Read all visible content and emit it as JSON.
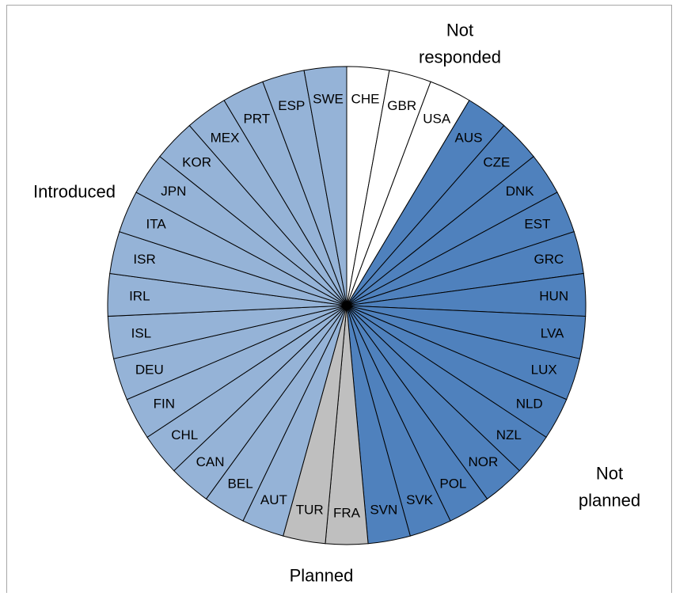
{
  "chart_data": {
    "type": "pie",
    "title": "",
    "start_angle_deg": 0,
    "direction": "clockwise",
    "slices": [
      {
        "label": "CHE",
        "value": 1,
        "group": "Not responded"
      },
      {
        "label": "GBR",
        "value": 1,
        "group": "Not responded"
      },
      {
        "label": "USA",
        "value": 1,
        "group": "Not responded"
      },
      {
        "label": "AUS",
        "value": 1,
        "group": "Not planned"
      },
      {
        "label": "CZE",
        "value": 1,
        "group": "Not planned"
      },
      {
        "label": "DNK",
        "value": 1,
        "group": "Not planned"
      },
      {
        "label": "EST",
        "value": 1,
        "group": "Not planned"
      },
      {
        "label": "GRC",
        "value": 1,
        "group": "Not planned"
      },
      {
        "label": "HUN",
        "value": 1,
        "group": "Not planned"
      },
      {
        "label": "LVA",
        "value": 1,
        "group": "Not planned"
      },
      {
        "label": "LUX",
        "value": 1,
        "group": "Not planned"
      },
      {
        "label": "NLD",
        "value": 1,
        "group": "Not planned"
      },
      {
        "label": "NZL",
        "value": 1,
        "group": "Not planned"
      },
      {
        "label": "NOR",
        "value": 1,
        "group": "Not planned"
      },
      {
        "label": "POL",
        "value": 1,
        "group": "Not planned"
      },
      {
        "label": "SVK",
        "value": 1,
        "group": "Not planned"
      },
      {
        "label": "SVN",
        "value": 1,
        "group": "Not planned"
      },
      {
        "label": "FRA",
        "value": 1,
        "group": "Planned"
      },
      {
        "label": "TUR",
        "value": 1,
        "group": "Planned"
      },
      {
        "label": "AUT",
        "value": 1,
        "group": "Introduced"
      },
      {
        "label": "BEL",
        "value": 1,
        "group": "Introduced"
      },
      {
        "label": "CAN",
        "value": 1,
        "group": "Introduced"
      },
      {
        "label": "CHL",
        "value": 1,
        "group": "Introduced"
      },
      {
        "label": "FIN",
        "value": 1,
        "group": "Introduced"
      },
      {
        "label": "DEU",
        "value": 1,
        "group": "Introduced"
      },
      {
        "label": "ISL",
        "value": 1,
        "group": "Introduced"
      },
      {
        "label": "IRL",
        "value": 1,
        "group": "Introduced"
      },
      {
        "label": "ISR",
        "value": 1,
        "group": "Introduced"
      },
      {
        "label": "ITA",
        "value": 1,
        "group": "Introduced"
      },
      {
        "label": "JPN",
        "value": 1,
        "group": "Introduced"
      },
      {
        "label": "KOR",
        "value": 1,
        "group": "Introduced"
      },
      {
        "label": "MEX",
        "value": 1,
        "group": "Introduced"
      },
      {
        "label": "PRT",
        "value": 1,
        "group": "Introduced"
      },
      {
        "label": "ESP",
        "value": 1,
        "group": "Introduced"
      },
      {
        "label": "SWE",
        "value": 1,
        "group": "Introduced"
      }
    ],
    "groups": [
      {
        "name": "Not responded",
        "color": "#ffffff"
      },
      {
        "name": "Not planned",
        "color": "#4f81bd"
      },
      {
        "name": "Planned",
        "color": "#bfbfbf"
      },
      {
        "name": "Introduced",
        "color": "#95b3d7"
      }
    ],
    "group_labels": [
      {
        "name": "Not responded",
        "lines": [
          "Not",
          "responded"
        ],
        "anchor": "top-right"
      },
      {
        "name": "Not planned",
        "lines": [
          "Not",
          "planned"
        ],
        "anchor": "right"
      },
      {
        "name": "Planned",
        "lines": [
          "Planned"
        ],
        "anchor": "bottom"
      },
      {
        "name": "Introduced",
        "lines": [
          "Introduced"
        ],
        "anchor": "left"
      }
    ]
  }
}
